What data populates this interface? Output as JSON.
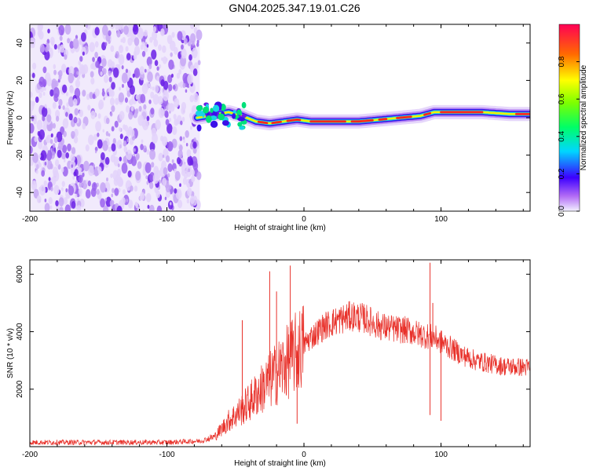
{
  "title": "GN04.2025.347.19.01.C26",
  "chart_data": [
    {
      "type": "heatmap",
      "xlabel": "Height of straight line (km)",
      "ylabel": "Frequency (Hz)",
      "xlim": [
        -200,
        165
      ],
      "ylim": [
        -50,
        50
      ],
      "xticks": [
        -200,
        -100,
        0,
        100
      ],
      "yticks": [
        -40,
        -20,
        0,
        20,
        40
      ],
      "noise_region_x": [
        -200,
        -76
      ],
      "signal_ridge": [
        {
          "x": -78,
          "y": 0
        },
        {
          "x": -70,
          "y": 1
        },
        {
          "x": -62,
          "y": 2
        },
        {
          "x": -55,
          "y": 3
        },
        {
          "x": -45,
          "y": 1
        },
        {
          "x": -35,
          "y": -2
        },
        {
          "x": -25,
          "y": -3
        },
        {
          "x": -15,
          "y": -2
        },
        {
          "x": -5,
          "y": -1
        },
        {
          "x": 5,
          "y": -2
        },
        {
          "x": 20,
          "y": -2
        },
        {
          "x": 40,
          "y": -2
        },
        {
          "x": 55,
          "y": -1
        },
        {
          "x": 70,
          "y": 0
        },
        {
          "x": 85,
          "y": 1
        },
        {
          "x": 95,
          "y": 3
        },
        {
          "x": 110,
          "y": 3
        },
        {
          "x": 130,
          "y": 3
        },
        {
          "x": 150,
          "y": 2
        },
        {
          "x": 165,
          "y": 2
        }
      ],
      "colorbar": {
        "label": "Normalized spectral amplitude",
        "range": [
          0,
          1
        ],
        "ticks": [
          0.0,
          0.2,
          0.4,
          0.6,
          0.8
        ]
      }
    },
    {
      "type": "line",
      "xlabel": "Height of straight line (km)",
      "ylabel": "SNR (10 * v/v)",
      "xlim": [
        -200,
        165
      ],
      "ylim": [
        0,
        6500
      ],
      "xticks": [
        -200,
        -100,
        0,
        100
      ],
      "yticks": [
        2000,
        4000,
        6000
      ],
      "series": [
        {
          "name": "SNR",
          "color": "#e8312a",
          "envelope": [
            {
              "x": -200,
              "y": 150
            },
            {
              "x": -150,
              "y": 150
            },
            {
              "x": -100,
              "y": 150
            },
            {
              "x": -75,
              "y": 200
            },
            {
              "x": -65,
              "y": 350
            },
            {
              "x": -55,
              "y": 900
            },
            {
              "x": -45,
              "y": 1300
            },
            {
              "x": -35,
              "y": 1800
            },
            {
              "x": -25,
              "y": 2300
            },
            {
              "x": -15,
              "y": 2800
            },
            {
              "x": -5,
              "y": 3300
            },
            {
              "x": 5,
              "y": 3800
            },
            {
              "x": 15,
              "y": 4200
            },
            {
              "x": 25,
              "y": 4400
            },
            {
              "x": 35,
              "y": 4550
            },
            {
              "x": 45,
              "y": 4450
            },
            {
              "x": 55,
              "y": 4200
            },
            {
              "x": 65,
              "y": 4100
            },
            {
              "x": 75,
              "y": 4050
            },
            {
              "x": 85,
              "y": 3900
            },
            {
              "x": 95,
              "y": 3800
            },
            {
              "x": 105,
              "y": 3500
            },
            {
              "x": 115,
              "y": 3200
            },
            {
              "x": 125,
              "y": 3000
            },
            {
              "x": 135,
              "y": 2900
            },
            {
              "x": 145,
              "y": 2800
            },
            {
              "x": 165,
              "y": 2750
            }
          ],
          "spikes": [
            {
              "x": -45,
              "y": 4400
            },
            {
              "x": -25,
              "y": 6100
            },
            {
              "x": -20,
              "y": 5400
            },
            {
              "x": -10,
              "y": 6300
            },
            {
              "x": -5,
              "y": 800
            },
            {
              "x": 92,
              "y": 6400
            },
            {
              "x": 94,
              "y": 5000
            },
            {
              "x": 92,
              "y": 1100
            },
            {
              "x": 100,
              "y": 900
            }
          ]
        }
      ]
    }
  ]
}
